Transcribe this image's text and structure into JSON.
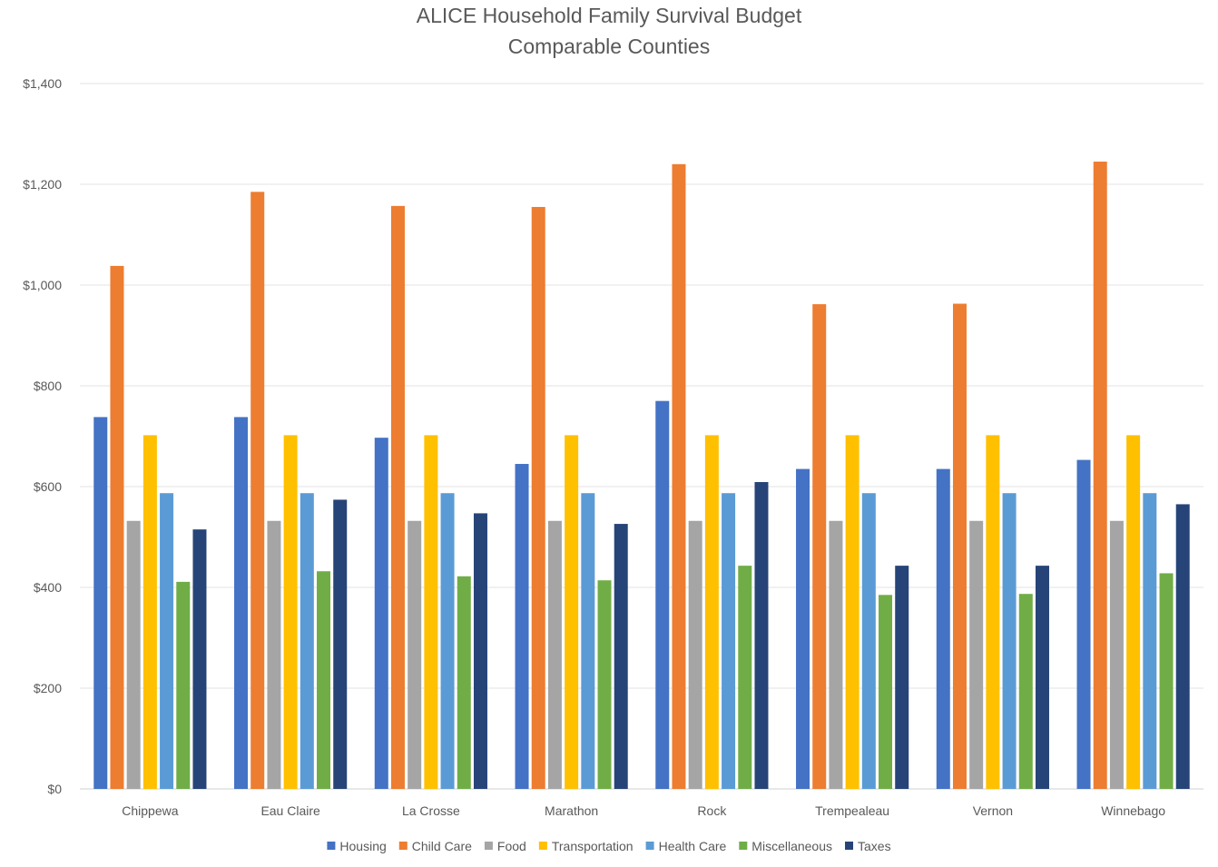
{
  "chart_data": {
    "type": "bar",
    "title_lines": [
      "ALICE Household  Family Survival Budget",
      "Comparable Counties"
    ],
    "categories": [
      "Chippewa",
      "Eau Claire",
      "La Crosse",
      "Marathon",
      "Rock",
      "Trempealeau",
      "Vernon",
      "Winnebago"
    ],
    "series": [
      {
        "name": "Housing",
        "color": "#4472C4",
        "values": [
          738,
          738,
          697,
          645,
          770,
          635,
          635,
          653
        ]
      },
      {
        "name": "Child Care",
        "color": "#ED7D31",
        "values": [
          1038,
          1185,
          1157,
          1155,
          1240,
          962,
          963,
          1245
        ]
      },
      {
        "name": "Food",
        "color": "#A5A5A5",
        "values": [
          532,
          532,
          532,
          532,
          532,
          532,
          532,
          532
        ]
      },
      {
        "name": "Transportation",
        "color": "#FFC000",
        "values": [
          702,
          702,
          702,
          702,
          702,
          702,
          702,
          702
        ]
      },
      {
        "name": "Health Care",
        "color": "#5B9BD5",
        "values": [
          587,
          587,
          587,
          587,
          587,
          587,
          587,
          587
        ]
      },
      {
        "name": "Miscellaneous",
        "color": "#70AD47",
        "values": [
          411,
          432,
          422,
          414,
          443,
          385,
          387,
          428
        ]
      },
      {
        "name": "Taxes",
        "color": "#264478",
        "values": [
          515,
          574,
          547,
          526,
          609,
          443,
          443,
          565
        ]
      }
    ],
    "y_ticks": [
      "$0",
      "$200",
      "$400",
      "$600",
      "$800",
      "$1,000",
      "$1,200",
      "$1,400"
    ],
    "ylim": [
      0,
      1400
    ],
    "xlabel": "",
    "ylabel": "",
    "grid": true,
    "legend_position": "bottom"
  }
}
